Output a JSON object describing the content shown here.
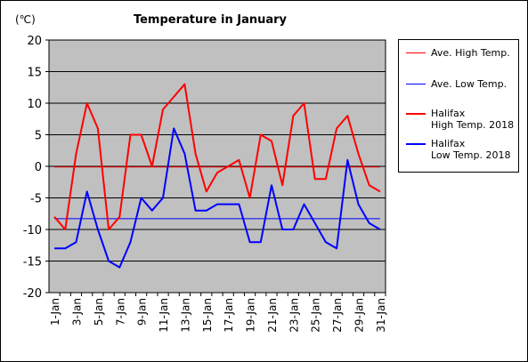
{
  "chart_data": {
    "type": "line",
    "title": "Temperature in January",
    "ylabel": "(℃)",
    "xlabel": "",
    "ylim": [
      -20,
      20
    ],
    "yticks": [
      20,
      15,
      10,
      5,
      0,
      -5,
      -10,
      -15,
      -20
    ],
    "grid": true,
    "legend_position": "right",
    "x": [
      "1-Jan",
      "2-Jan",
      "3-Jan",
      "4-Jan",
      "5-Jan",
      "6-Jan",
      "7-Jan",
      "8-Jan",
      "9-Jan",
      "10-Jan",
      "11-Jan",
      "12-Jan",
      "13-Jan",
      "14-Jan",
      "15-Jan",
      "16-Jan",
      "17-Jan",
      "18-Jan",
      "19-Jan",
      "20-Jan",
      "21-Jan",
      "22-Jan",
      "23-Jan",
      "24-Jan",
      "25-Jan",
      "26-Jan",
      "27-Jan",
      "28-Jan",
      "29-Jan",
      "30-Jan",
      "31-Jan"
    ],
    "xtick_labels": [
      "1-Jan",
      "3-Jan",
      "5-Jan",
      "7-Jan",
      "9-Jan",
      "11-Jan",
      "13-Jan",
      "15-Jan",
      "17-Jan",
      "19-Jan",
      "21-Jan",
      "23-Jan",
      "25-Jan",
      "27-Jan",
      "29-Jan",
      "31-Jan"
    ],
    "series": [
      {
        "name": "Ave. High Temp.",
        "color": "#ff0000",
        "style": "thin",
        "values": [
          -0.1,
          -0.1,
          -0.1,
          -0.1,
          -0.1,
          -0.1,
          -0.1,
          -0.1,
          -0.1,
          -0.1,
          -0.1,
          -0.1,
          -0.1,
          -0.1,
          -0.1,
          -0.1,
          -0.1,
          -0.1,
          -0.1,
          -0.1,
          -0.1,
          -0.1,
          -0.1,
          -0.1,
          -0.1,
          -0.1,
          -0.1,
          -0.1,
          -0.1,
          -0.1,
          -0.1
        ]
      },
      {
        "name": "Ave. Low Temp.",
        "color": "#0000ff",
        "style": "thin",
        "values": [
          -8.3,
          -8.3,
          -8.3,
          -8.3,
          -8.3,
          -8.3,
          -8.3,
          -8.3,
          -8.3,
          -8.3,
          -8.3,
          -8.3,
          -8.3,
          -8.3,
          -8.3,
          -8.3,
          -8.3,
          -8.3,
          -8.3,
          -8.3,
          -8.3,
          -8.3,
          -8.3,
          -8.3,
          -8.3,
          -8.3,
          -8.3,
          -8.3,
          -8.3,
          -8.3,
          -8.3
        ]
      },
      {
        "name": "Halifax\nHigh Temp. 2018",
        "color": "#ff0000",
        "style": "thick",
        "values": [
          -8,
          -10,
          2,
          10,
          6,
          -10,
          -8,
          5,
          5,
          0,
          9,
          11,
          13,
          2,
          -4,
          -1,
          0,
          1,
          -5,
          5,
          4,
          -3,
          8,
          10,
          -2,
          -2,
          6,
          8,
          2,
          -3,
          -4
        ]
      },
      {
        "name": "Halifax\nLow Temp. 2018",
        "color": "#0000ff",
        "style": "thick",
        "values": [
          -13,
          -13,
          -12,
          -4,
          -10,
          -15,
          -16,
          -12,
          -5,
          -7,
          -5,
          6,
          2,
          -7,
          -7,
          -6,
          -6,
          -6,
          -12,
          -12,
          -3,
          -10,
          -10,
          -6,
          -9,
          -12,
          -13,
          1,
          -6,
          -9,
          -10
        ]
      }
    ]
  },
  "colors": {
    "plot_background": "#c0c0c0",
    "grid": "#000000"
  }
}
